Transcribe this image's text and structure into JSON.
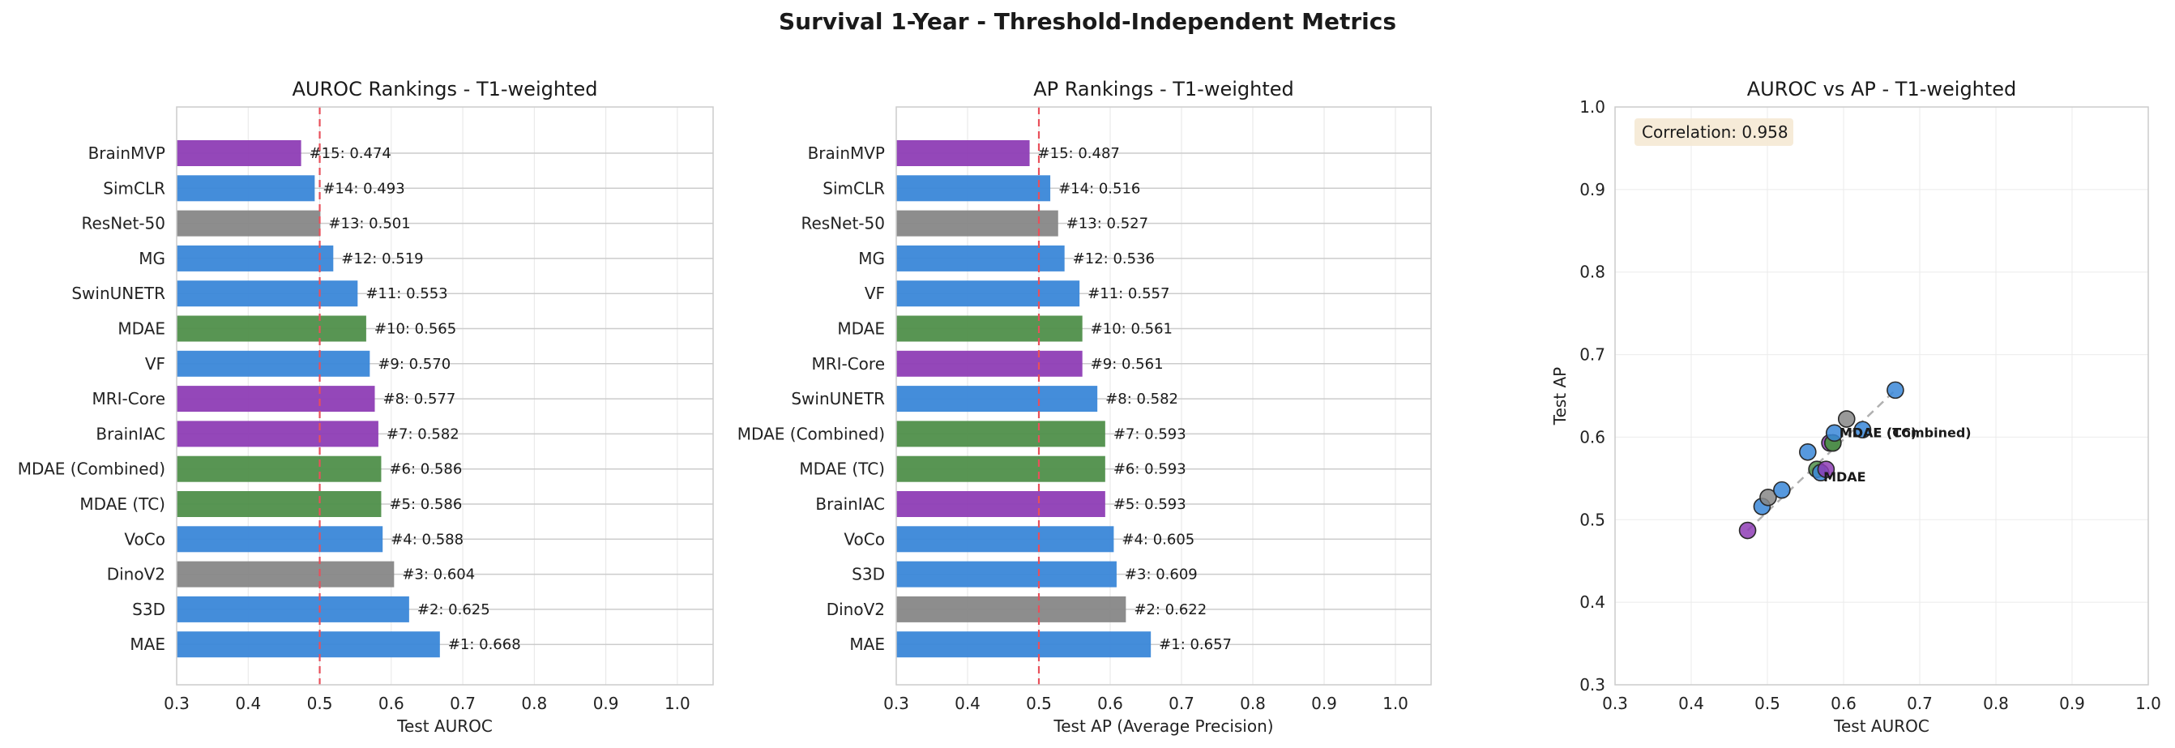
{
  "figure": {
    "title": "Survival 1-Year - Threshold-Independent Metrics"
  },
  "colors": {
    "purple": "#8e3db5",
    "blue": "#3a87d8",
    "gray": "#878787",
    "green": "#4f8f4a",
    "refline": "#e8505b",
    "diagonal": "#b0b0b0",
    "corrbox": "#f5e9d4"
  },
  "chart_data": [
    {
      "type": "bar",
      "orientation": "horizontal",
      "title": "AUROC Rankings - T1-weighted",
      "xlabel": "Test AUROC",
      "ylabel": "",
      "xlim": [
        0.3,
        1.05
      ],
      "xticks": [
        0.3,
        0.4,
        0.5,
        0.6,
        0.7,
        0.8,
        0.9,
        1.0
      ],
      "reference_line": 0.5,
      "grid": true,
      "categories": [
        "BrainMVP",
        "SimCLR",
        "ResNet-50",
        "MG",
        "SwinUNETR",
        "MDAE",
        "VF",
        "MRI-Core",
        "BrainIAC",
        "MDAE (Combined)",
        "MDAE (TC)",
        "VoCo",
        "DinoV2",
        "S3D",
        "MAE"
      ],
      "values": [
        0.474,
        0.493,
        0.501,
        0.519,
        0.553,
        0.565,
        0.57,
        0.577,
        0.582,
        0.586,
        0.586,
        0.588,
        0.604,
        0.625,
        0.668
      ],
      "ranks": [
        15,
        14,
        13,
        12,
        11,
        10,
        9,
        8,
        7,
        6,
        5,
        4,
        3,
        2,
        1
      ],
      "bar_colors": [
        "purple",
        "blue",
        "gray",
        "blue",
        "blue",
        "green",
        "blue",
        "purple",
        "purple",
        "green",
        "green",
        "blue",
        "gray",
        "blue",
        "blue"
      ],
      "data_labels": [
        "#15: 0.474",
        "#14: 0.493",
        "#13: 0.501",
        "#12: 0.519",
        "#11: 0.553",
        "#10: 0.565",
        "#9: 0.570",
        "#8: 0.577",
        "#7: 0.582",
        "#6: 0.586",
        "#5: 0.586",
        "#4: 0.588",
        "#3: 0.604",
        "#2: 0.625",
        "#1: 0.668"
      ]
    },
    {
      "type": "bar",
      "orientation": "horizontal",
      "title": "AP Rankings - T1-weighted",
      "xlabel": "Test AP (Average Precision)",
      "ylabel": "",
      "xlim": [
        0.3,
        1.05
      ],
      "xticks": [
        0.3,
        0.4,
        0.5,
        0.6,
        0.7,
        0.8,
        0.9,
        1.0
      ],
      "reference_line": 0.5,
      "grid": true,
      "categories": [
        "BrainMVP",
        "SimCLR",
        "ResNet-50",
        "MG",
        "VF",
        "MDAE",
        "MRI-Core",
        "SwinUNETR",
        "MDAE (Combined)",
        "MDAE (TC)",
        "BrainIAC",
        "VoCo",
        "S3D",
        "DinoV2",
        "MAE"
      ],
      "values": [
        0.487,
        0.516,
        0.527,
        0.536,
        0.557,
        0.561,
        0.561,
        0.582,
        0.593,
        0.593,
        0.593,
        0.605,
        0.609,
        0.622,
        0.657
      ],
      "ranks": [
        15,
        14,
        13,
        12,
        11,
        10,
        9,
        8,
        7,
        6,
        5,
        4,
        3,
        2,
        1
      ],
      "bar_colors": [
        "purple",
        "blue",
        "gray",
        "blue",
        "blue",
        "green",
        "purple",
        "blue",
        "green",
        "green",
        "purple",
        "blue",
        "blue",
        "gray",
        "blue"
      ],
      "data_labels": [
        "#15: 0.487",
        "#14: 0.516",
        "#13: 0.527",
        "#12: 0.536",
        "#11: 0.557",
        "#10: 0.561",
        "#9: 0.561",
        "#8: 0.582",
        "#7: 0.593",
        "#6: 0.593",
        "#5: 0.593",
        "#4: 0.605",
        "#3: 0.609",
        "#2: 0.622",
        "#1: 0.657"
      ]
    },
    {
      "type": "scatter",
      "title": "AUROC vs AP - T1-weighted",
      "xlabel": "Test AUROC",
      "ylabel": "Test AP",
      "xlim": [
        0.3,
        1.0
      ],
      "ylim": [
        0.3,
        1.0
      ],
      "xticks": [
        0.3,
        0.4,
        0.5,
        0.6,
        0.7,
        0.8,
        0.9,
        1.0
      ],
      "yticks": [
        0.3,
        0.4,
        0.5,
        0.6,
        0.7,
        0.8,
        0.9,
        1.0
      ],
      "grid": true,
      "correlation_text": "Correlation: 0.958",
      "points": [
        {
          "x": 0.474,
          "y": 0.487,
          "color": "purple"
        },
        {
          "x": 0.493,
          "y": 0.516,
          "color": "blue"
        },
        {
          "x": 0.501,
          "y": 0.527,
          "color": "gray"
        },
        {
          "x": 0.519,
          "y": 0.536,
          "color": "blue"
        },
        {
          "x": 0.553,
          "y": 0.582,
          "color": "blue"
        },
        {
          "x": 0.565,
          "y": 0.561,
          "color": "green"
        },
        {
          "x": 0.57,
          "y": 0.557,
          "color": "blue"
        },
        {
          "x": 0.577,
          "y": 0.561,
          "color": "purple"
        },
        {
          "x": 0.582,
          "y": 0.593,
          "color": "purple"
        },
        {
          "x": 0.586,
          "y": 0.593,
          "color": "green"
        },
        {
          "x": 0.586,
          "y": 0.593,
          "color": "green"
        },
        {
          "x": 0.588,
          "y": 0.605,
          "color": "blue"
        },
        {
          "x": 0.604,
          "y": 0.622,
          "color": "gray"
        },
        {
          "x": 0.625,
          "y": 0.609,
          "color": "blue"
        },
        {
          "x": 0.668,
          "y": 0.657,
          "color": "blue"
        }
      ],
      "annotations": [
        {
          "text": "MDAE (TC)",
          "x": 0.586,
          "y": 0.593
        },
        {
          "text": "MDAE (Combined)",
          "x": 0.586,
          "y": 0.593
        },
        {
          "text": "MDAE",
          "x": 0.565,
          "y": 0.561
        }
      ],
      "trend_line": {
        "x": [
          0.474,
          0.668
        ],
        "y": [
          0.487,
          0.657
        ]
      }
    }
  ]
}
